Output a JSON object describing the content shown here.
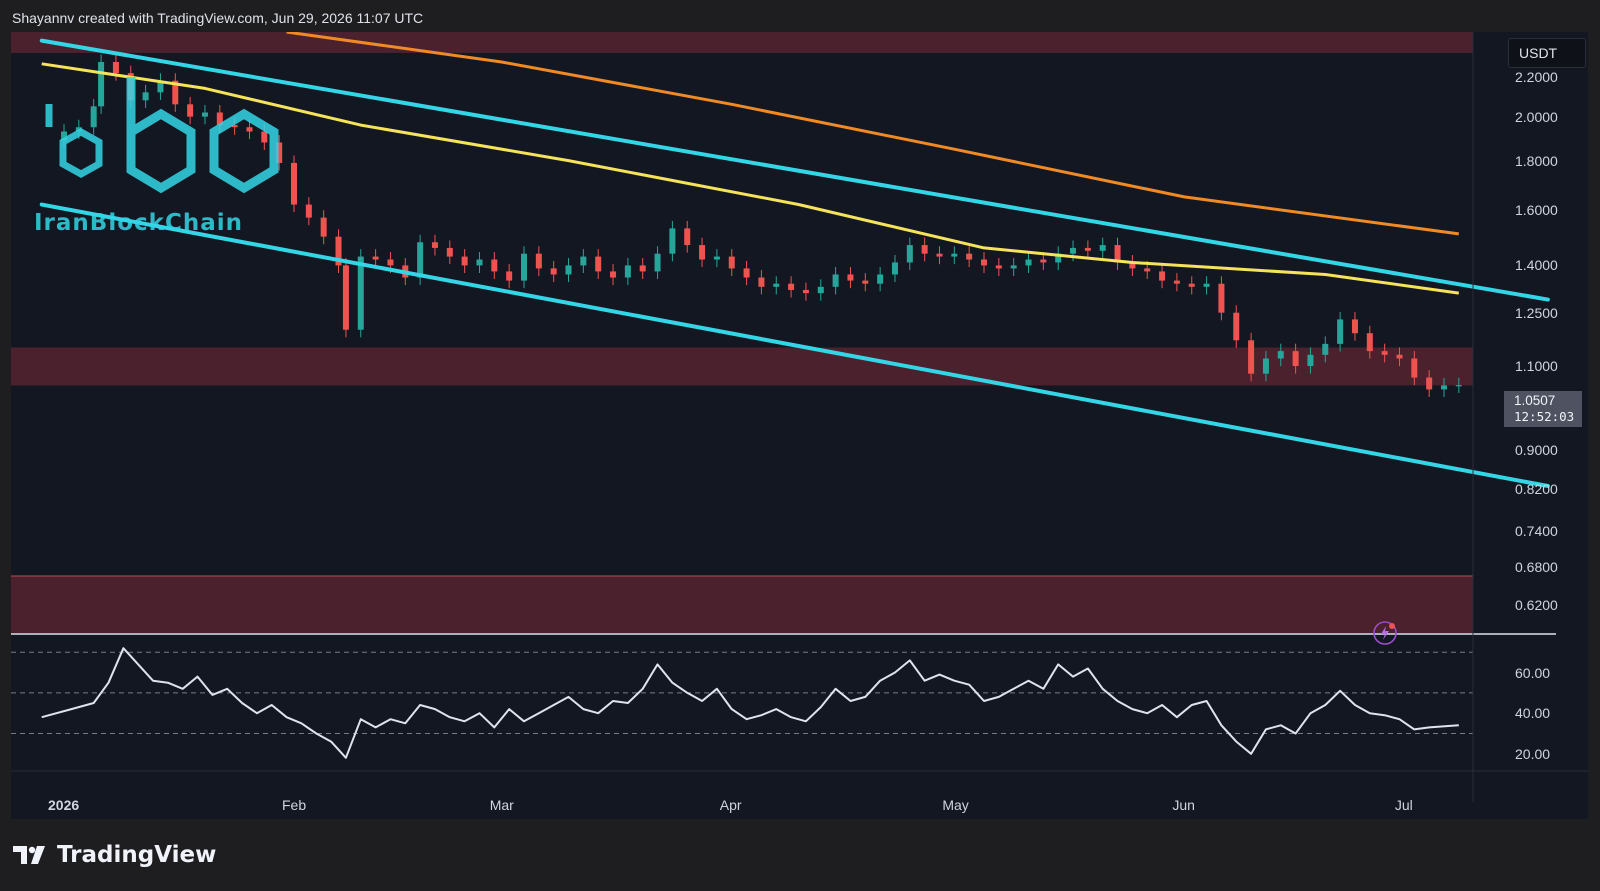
{
  "header": {
    "caption": "Shayannv created with TradingView.com, Jun 29, 2026 11:07 UTC"
  },
  "watermark": {
    "brand": "IranBlockChain",
    "logo_icon": "hexagon-ibc-logo"
  },
  "footer": {
    "brand": "TradingView",
    "logo_icon": "tradingview-logo"
  },
  "currency": "USDT",
  "last_price": {
    "value": "1.0507",
    "countdown": "12:52:03"
  },
  "colors": {
    "background": "#131722",
    "channel": "#33d6e6",
    "ma_yellow": "#f5e35a",
    "ma_orange": "#f08a24",
    "zone": "#5a2430",
    "candle_up": "#26a69a",
    "candle_down": "#ef5350",
    "rsi_line": "#e0e3eb"
  },
  "chart_data": [
    {
      "type": "candlestick",
      "scale": "log",
      "ylim": [
        0.58,
        2.45
      ],
      "y_ticks": [
        "2.2000",
        "2.0000",
        "1.8000",
        "1.6000",
        "1.4000",
        "1.2500",
        "1.1000",
        "0.9000",
        "0.8200",
        "0.7400",
        "0.6800",
        "0.6200"
      ],
      "x_ticks": [
        "2026",
        "Feb",
        "Mar",
        "Apr",
        "May",
        "Jun",
        "Jul"
      ],
      "x_start": "2026-01-01",
      "close_series": [
        {
          "date": "2025-12-29",
          "value": 1.89
        },
        {
          "date": "2026-01-01",
          "value": 1.93
        },
        {
          "date": "2026-01-03",
          "value": 1.95
        },
        {
          "date": "2026-01-05",
          "value": 2.05
        },
        {
          "date": "2026-01-06",
          "value": 2.28
        },
        {
          "date": "2026-01-08",
          "value": 2.22
        },
        {
          "date": "2026-01-10",
          "value": 2.08
        },
        {
          "date": "2026-01-12",
          "value": 2.12
        },
        {
          "date": "2026-01-14",
          "value": 2.18
        },
        {
          "date": "2026-01-16",
          "value": 2.06
        },
        {
          "date": "2026-01-18",
          "value": 2.0
        },
        {
          "date": "2026-01-20",
          "value": 2.02
        },
        {
          "date": "2026-01-22",
          "value": 1.96
        },
        {
          "date": "2026-01-24",
          "value": 1.95
        },
        {
          "date": "2026-01-26",
          "value": 1.93
        },
        {
          "date": "2026-01-28",
          "value": 1.88
        },
        {
          "date": "2026-01-30",
          "value": 1.79
        },
        {
          "date": "2026-02-01",
          "value": 1.62
        },
        {
          "date": "2026-02-03",
          "value": 1.57
        },
        {
          "date": "2026-02-05",
          "value": 1.5
        },
        {
          "date": "2026-02-07",
          "value": 1.4
        },
        {
          "date": "2026-02-08",
          "value": 1.2
        },
        {
          "date": "2026-02-10",
          "value": 1.43
        },
        {
          "date": "2026-02-12",
          "value": 1.42
        },
        {
          "date": "2026-02-14",
          "value": 1.4
        },
        {
          "date": "2026-02-16",
          "value": 1.36
        },
        {
          "date": "2026-02-18",
          "value": 1.48
        },
        {
          "date": "2026-02-20",
          "value": 1.46
        },
        {
          "date": "2026-02-22",
          "value": 1.43
        },
        {
          "date": "2026-02-24",
          "value": 1.4
        },
        {
          "date": "2026-02-26",
          "value": 1.42
        },
        {
          "date": "2026-02-28",
          "value": 1.38
        },
        {
          "date": "2026-03-02",
          "value": 1.35
        },
        {
          "date": "2026-03-04",
          "value": 1.44
        },
        {
          "date": "2026-03-06",
          "value": 1.39
        },
        {
          "date": "2026-03-08",
          "value": 1.37
        },
        {
          "date": "2026-03-10",
          "value": 1.4
        },
        {
          "date": "2026-03-12",
          "value": 1.43
        },
        {
          "date": "2026-03-14",
          "value": 1.38
        },
        {
          "date": "2026-03-16",
          "value": 1.36
        },
        {
          "date": "2026-03-18",
          "value": 1.4
        },
        {
          "date": "2026-03-20",
          "value": 1.38
        },
        {
          "date": "2026-03-22",
          "value": 1.44
        },
        {
          "date": "2026-03-24",
          "value": 1.53
        },
        {
          "date": "2026-03-26",
          "value": 1.47
        },
        {
          "date": "2026-03-28",
          "value": 1.42
        },
        {
          "date": "2026-03-30",
          "value": 1.43
        },
        {
          "date": "2026-04-01",
          "value": 1.39
        },
        {
          "date": "2026-04-03",
          "value": 1.36
        },
        {
          "date": "2026-04-05",
          "value": 1.33
        },
        {
          "date": "2026-04-07",
          "value": 1.34
        },
        {
          "date": "2026-04-09",
          "value": 1.32
        },
        {
          "date": "2026-04-11",
          "value": 1.31
        },
        {
          "date": "2026-04-13",
          "value": 1.33
        },
        {
          "date": "2026-04-15",
          "value": 1.37
        },
        {
          "date": "2026-04-17",
          "value": 1.35
        },
        {
          "date": "2026-04-19",
          "value": 1.34
        },
        {
          "date": "2026-04-21",
          "value": 1.37
        },
        {
          "date": "2026-04-23",
          "value": 1.41
        },
        {
          "date": "2026-04-25",
          "value": 1.47
        },
        {
          "date": "2026-04-27",
          "value": 1.44
        },
        {
          "date": "2026-04-29",
          "value": 1.43
        },
        {
          "date": "2026-05-01",
          "value": 1.44
        },
        {
          "date": "2026-05-03",
          "value": 1.42
        },
        {
          "date": "2026-05-05",
          "value": 1.4
        },
        {
          "date": "2026-05-07",
          "value": 1.39
        },
        {
          "date": "2026-05-09",
          "value": 1.4
        },
        {
          "date": "2026-05-11",
          "value": 1.42
        },
        {
          "date": "2026-05-13",
          "value": 1.41
        },
        {
          "date": "2026-05-15",
          "value": 1.44
        },
        {
          "date": "2026-05-17",
          "value": 1.46
        },
        {
          "date": "2026-05-19",
          "value": 1.45
        },
        {
          "date": "2026-05-21",
          "value": 1.47
        },
        {
          "date": "2026-05-23",
          "value": 1.41
        },
        {
          "date": "2026-05-25",
          "value": 1.39
        },
        {
          "date": "2026-05-27",
          "value": 1.38
        },
        {
          "date": "2026-05-29",
          "value": 1.35
        },
        {
          "date": "2026-05-31",
          "value": 1.34
        },
        {
          "date": "2026-06-02",
          "value": 1.33
        },
        {
          "date": "2026-06-04",
          "value": 1.34
        },
        {
          "date": "2026-06-06",
          "value": 1.25
        },
        {
          "date": "2026-06-08",
          "value": 1.17
        },
        {
          "date": "2026-06-10",
          "value": 1.08
        },
        {
          "date": "2026-06-12",
          "value": 1.12
        },
        {
          "date": "2026-06-14",
          "value": 1.14
        },
        {
          "date": "2026-06-16",
          "value": 1.1
        },
        {
          "date": "2026-06-18",
          "value": 1.13
        },
        {
          "date": "2026-06-20",
          "value": 1.16
        },
        {
          "date": "2026-06-22",
          "value": 1.23
        },
        {
          "date": "2026-06-24",
          "value": 1.19
        },
        {
          "date": "2026-06-26",
          "value": 1.14
        },
        {
          "date": "2026-06-28",
          "value": 1.13
        },
        {
          "date": "2026-06-30",
          "value": 1.12
        },
        {
          "date": "2026-07-02",
          "value": 1.07
        },
        {
          "date": "2026-07-04",
          "value": 1.04
        },
        {
          "date": "2026-07-06",
          "value": 1.05
        },
        {
          "date": "2026-07-08",
          "value": 1.0507
        }
      ],
      "moving_averages": [
        {
          "color": "#f5e35a",
          "points": [
            {
              "date": "2025-12-29",
              "value": 2.27
            },
            {
              "date": "2026-01-20",
              "value": 2.14
            },
            {
              "date": "2026-02-10",
              "value": 1.96
            },
            {
              "date": "2026-03-10",
              "value": 1.8
            },
            {
              "date": "2026-04-10",
              "value": 1.62
            },
            {
              "date": "2026-05-05",
              "value": 1.46
            },
            {
              "date": "2026-05-25",
              "value": 1.41
            },
            {
              "date": "2026-06-20",
              "value": 1.37
            },
            {
              "date": "2026-07-08",
              "value": 1.31
            }
          ]
        },
        {
          "color": "#f08a24",
          "points": [
            {
              "date": "2026-01-31",
              "value": 2.45
            },
            {
              "date": "2026-03-01",
              "value": 2.28
            },
            {
              "date": "2026-04-01",
              "value": 2.06
            },
            {
              "date": "2026-05-01",
              "value": 1.85
            },
            {
              "date": "2026-06-01",
              "value": 1.65
            },
            {
              "date": "2026-07-08",
              "value": 1.51
            }
          ]
        }
      ],
      "channel_lines": [
        {
          "color": "#33d6e6",
          "from": {
            "date": "2025-12-29",
            "value": 2.4
          },
          "to": {
            "date": "2026-07-20",
            "value": 1.29
          }
        },
        {
          "color": "#33d6e6",
          "from": {
            "date": "2025-12-29",
            "value": 1.62
          },
          "to": {
            "date": "2026-07-20",
            "value": 0.825
          }
        }
      ],
      "zones": [
        {
          "from": 2.33,
          "to": 2.45
        },
        {
          "from": 1.05,
          "to": 1.15
        },
        {
          "from": 0.58,
          "to": 0.665
        }
      ]
    },
    {
      "type": "line",
      "ylim": [
        12,
        78
      ],
      "y_ticks": [
        "60.00",
        "40.00",
        "20.00"
      ],
      "levels": [
        70,
        50,
        30
      ],
      "x_start": "2026-01-01",
      "series": [
        {
          "date": "2025-12-29",
          "value": 38
        },
        {
          "date": "2026-01-02",
          "value": 42
        },
        {
          "date": "2026-01-05",
          "value": 45
        },
        {
          "date": "2026-01-07",
          "value": 55
        },
        {
          "date": "2026-01-09",
          "value": 72
        },
        {
          "date": "2026-01-11",
          "value": 64
        },
        {
          "date": "2026-01-13",
          "value": 56
        },
        {
          "date": "2026-01-15",
          "value": 55
        },
        {
          "date": "2026-01-17",
          "value": 52
        },
        {
          "date": "2026-01-19",
          "value": 58
        },
        {
          "date": "2026-01-21",
          "value": 49
        },
        {
          "date": "2026-01-23",
          "value": 52
        },
        {
          "date": "2026-01-25",
          "value": 45
        },
        {
          "date": "2026-01-27",
          "value": 40
        },
        {
          "date": "2026-01-29",
          "value": 44
        },
        {
          "date": "2026-01-31",
          "value": 38
        },
        {
          "date": "2026-02-02",
          "value": 35
        },
        {
          "date": "2026-02-04",
          "value": 30
        },
        {
          "date": "2026-02-06",
          "value": 26
        },
        {
          "date": "2026-02-08",
          "value": 18
        },
        {
          "date": "2026-02-10",
          "value": 37
        },
        {
          "date": "2026-02-12",
          "value": 33
        },
        {
          "date": "2026-02-14",
          "value": 37
        },
        {
          "date": "2026-02-16",
          "value": 35
        },
        {
          "date": "2026-02-18",
          "value": 44
        },
        {
          "date": "2026-02-20",
          "value": 42
        },
        {
          "date": "2026-02-22",
          "value": 38
        },
        {
          "date": "2026-02-24",
          "value": 36
        },
        {
          "date": "2026-02-26",
          "value": 40
        },
        {
          "date": "2026-02-28",
          "value": 33
        },
        {
          "date": "2026-03-02",
          "value": 42
        },
        {
          "date": "2026-03-04",
          "value": 36
        },
        {
          "date": "2026-03-06",
          "value": 40
        },
        {
          "date": "2026-03-08",
          "value": 44
        },
        {
          "date": "2026-03-10",
          "value": 48
        },
        {
          "date": "2026-03-12",
          "value": 42
        },
        {
          "date": "2026-03-14",
          "value": 40
        },
        {
          "date": "2026-03-16",
          "value": 46
        },
        {
          "date": "2026-03-18",
          "value": 45
        },
        {
          "date": "2026-03-20",
          "value": 52
        },
        {
          "date": "2026-03-22",
          "value": 64
        },
        {
          "date": "2026-03-24",
          "value": 55
        },
        {
          "date": "2026-03-26",
          "value": 50
        },
        {
          "date": "2026-03-28",
          "value": 46
        },
        {
          "date": "2026-03-30",
          "value": 52
        },
        {
          "date": "2026-04-01",
          "value": 42
        },
        {
          "date": "2026-04-03",
          "value": 37
        },
        {
          "date": "2026-04-05",
          "value": 39
        },
        {
          "date": "2026-04-07",
          "value": 42
        },
        {
          "date": "2026-04-09",
          "value": 38
        },
        {
          "date": "2026-04-11",
          "value": 36
        },
        {
          "date": "2026-04-13",
          "value": 43
        },
        {
          "date": "2026-04-15",
          "value": 52
        },
        {
          "date": "2026-04-17",
          "value": 46
        },
        {
          "date": "2026-04-19",
          "value": 48
        },
        {
          "date": "2026-04-21",
          "value": 56
        },
        {
          "date": "2026-04-23",
          "value": 60
        },
        {
          "date": "2026-04-25",
          "value": 66
        },
        {
          "date": "2026-04-27",
          "value": 56
        },
        {
          "date": "2026-04-29",
          "value": 59
        },
        {
          "date": "2026-05-01",
          "value": 56
        },
        {
          "date": "2026-05-03",
          "value": 54
        },
        {
          "date": "2026-05-05",
          "value": 46
        },
        {
          "date": "2026-05-07",
          "value": 48
        },
        {
          "date": "2026-05-09",
          "value": 52
        },
        {
          "date": "2026-05-11",
          "value": 56
        },
        {
          "date": "2026-05-13",
          "value": 52
        },
        {
          "date": "2026-05-15",
          "value": 64
        },
        {
          "date": "2026-05-17",
          "value": 58
        },
        {
          "date": "2026-05-19",
          "value": 62
        },
        {
          "date": "2026-05-21",
          "value": 52
        },
        {
          "date": "2026-05-23",
          "value": 46
        },
        {
          "date": "2026-05-25",
          "value": 42
        },
        {
          "date": "2026-05-27",
          "value": 40
        },
        {
          "date": "2026-05-29",
          "value": 44
        },
        {
          "date": "2026-05-31",
          "value": 38
        },
        {
          "date": "2026-06-02",
          "value": 44
        },
        {
          "date": "2026-06-04",
          "value": 46
        },
        {
          "date": "2026-06-06",
          "value": 34
        },
        {
          "date": "2026-06-08",
          "value": 26
        },
        {
          "date": "2026-06-10",
          "value": 20
        },
        {
          "date": "2026-06-12",
          "value": 32
        },
        {
          "date": "2026-06-14",
          "value": 34
        },
        {
          "date": "2026-06-16",
          "value": 30
        },
        {
          "date": "2026-06-18",
          "value": 40
        },
        {
          "date": "2026-06-20",
          "value": 44
        },
        {
          "date": "2026-06-22",
          "value": 51
        },
        {
          "date": "2026-06-24",
          "value": 44
        },
        {
          "date": "2026-06-26",
          "value": 40
        },
        {
          "date": "2026-06-28",
          "value": 39
        },
        {
          "date": "2026-06-30",
          "value": 37
        },
        {
          "date": "2026-07-02",
          "value": 32
        },
        {
          "date": "2026-07-04",
          "value": 33
        },
        {
          "date": "2026-07-08",
          "value": 34
        }
      ]
    }
  ]
}
